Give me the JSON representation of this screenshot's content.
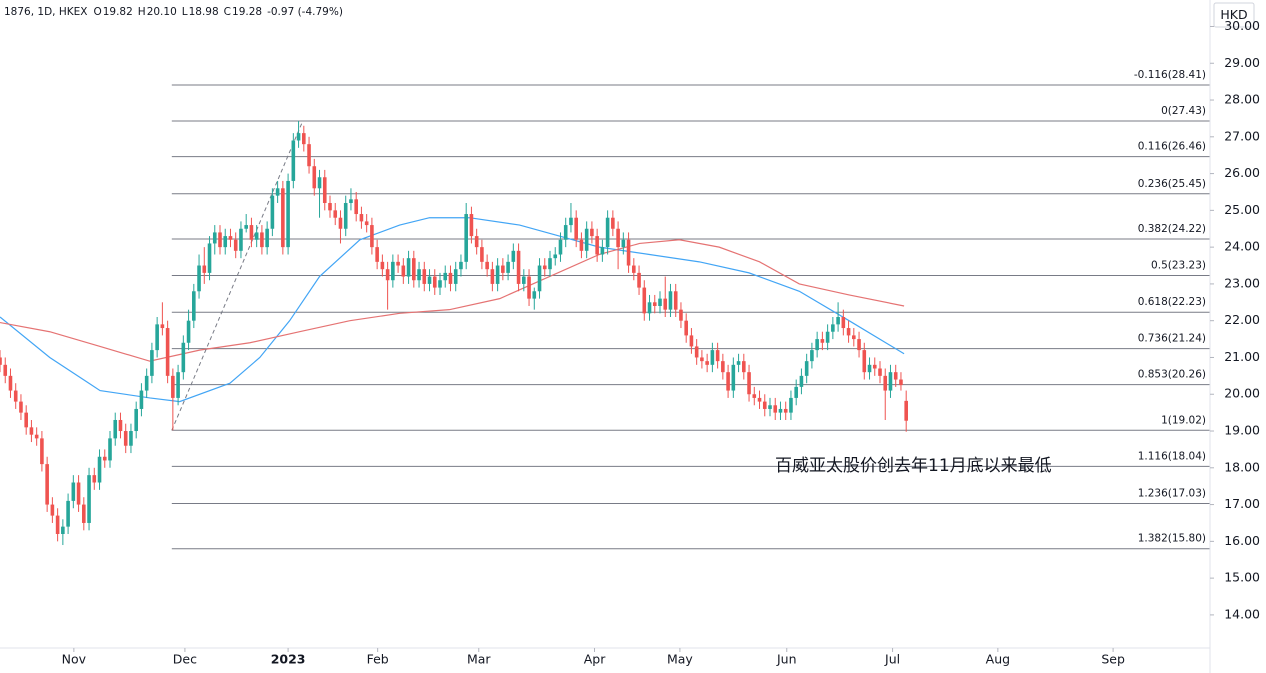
{
  "chart_data": {
    "type": "candlestick",
    "header": {
      "symbol": "1876, 1D, HKEX",
      "fields": [
        {
          "label": "O",
          "value": "19.82"
        },
        {
          "label": "H",
          "value": "20.10"
        },
        {
          "label": "L",
          "value": "18.98"
        },
        {
          "label": "C",
          "value": "19.28"
        }
      ],
      "change": "-0.97 (-4.79%)"
    },
    "currency": "HKD",
    "annotation": "百威亚太股价创去年11月底以来最低",
    "up_color": "#26a69a",
    "down_color": "#ef5350",
    "xlim": [
      0,
      231
    ],
    "xticks": [
      {
        "value": 14.1,
        "label": "Nov"
      },
      {
        "value": 35.3,
        "label": "Dec"
      },
      {
        "value": 55,
        "label": "2023"
      },
      {
        "value": 72.1,
        "label": "Feb"
      },
      {
        "value": 91.4,
        "label": "Mar"
      },
      {
        "value": 113.5,
        "label": "Apr"
      },
      {
        "value": 129.8,
        "label": "May"
      },
      {
        "value": 150.2,
        "label": "Jun"
      },
      {
        "value": 170.4,
        "label": "Jul"
      },
      {
        "value": 190.5,
        "label": "Aug"
      },
      {
        "value": 212.5,
        "label": "Sep"
      }
    ],
    "ylim": [
      13.1,
      30.72
    ],
    "yticks": [
      {
        "value": 14,
        "label": "14.00"
      },
      {
        "value": 15,
        "label": "15.00"
      },
      {
        "value": 16,
        "label": "16.00"
      },
      {
        "value": 17,
        "label": "17.00"
      },
      {
        "value": 18,
        "label": "18.00"
      },
      {
        "value": 19,
        "label": "19.00"
      },
      {
        "value": 20,
        "label": "20.00"
      },
      {
        "value": 21,
        "label": "21.00"
      },
      {
        "value": 22,
        "label": "22.00"
      },
      {
        "value": 23,
        "label": "23.00"
      },
      {
        "value": 24,
        "label": "24.00"
      },
      {
        "value": 25,
        "label": "25.00"
      },
      {
        "value": 26,
        "label": "26.00"
      },
      {
        "value": 27,
        "label": "27.00"
      },
      {
        "value": 28,
        "label": "28.00"
      },
      {
        "value": 29,
        "label": "29.00"
      },
      {
        "value": 30,
        "label": "30.00"
      }
    ],
    "ohlc": [
      [
        21.0,
        21.2,
        20.6,
        20.8
      ],
      [
        20.8,
        21.0,
        20.3,
        20.5
      ],
      [
        20.5,
        20.7,
        19.9,
        20.1
      ],
      [
        20.1,
        20.3,
        19.6,
        19.8
      ],
      [
        19.8,
        20.0,
        19.3,
        19.5
      ],
      [
        19.5,
        19.7,
        18.9,
        19.1
      ],
      [
        19.1,
        19.3,
        18.7,
        18.9
      ],
      [
        18.9,
        19.1,
        18.6,
        18.8
      ],
      [
        18.8,
        19.0,
        17.9,
        18.1
      ],
      [
        18.1,
        18.3,
        16.8,
        17.0
      ],
      [
        17.0,
        17.2,
        16.5,
        16.7
      ],
      [
        16.7,
        16.9,
        16.0,
        16.2
      ],
      [
        16.2,
        16.6,
        15.9,
        16.4
      ],
      [
        16.4,
        17.3,
        16.2,
        17.1
      ],
      [
        17.1,
        17.8,
        16.9,
        17.6
      ],
      [
        17.6,
        17.8,
        16.8,
        17.0
      ],
      [
        17.0,
        17.2,
        16.3,
        16.5
      ],
      [
        16.5,
        18.0,
        16.3,
        17.8
      ],
      [
        17.8,
        18.0,
        17.4,
        17.6
      ],
      [
        17.6,
        18.5,
        17.4,
        18.3
      ],
      [
        18.3,
        18.5,
        18.0,
        18.2
      ],
      [
        18.2,
        19.0,
        18.0,
        18.8
      ],
      [
        18.8,
        19.5,
        18.6,
        19.3
      ],
      [
        19.3,
        19.5,
        18.8,
        19.0
      ],
      [
        19.0,
        19.2,
        18.4,
        18.6
      ],
      [
        18.6,
        19.2,
        18.4,
        19.0
      ],
      [
        19.0,
        19.8,
        18.8,
        19.6
      ],
      [
        19.6,
        20.3,
        19.4,
        20.1
      ],
      [
        20.1,
        20.7,
        19.9,
        20.5
      ],
      [
        20.5,
        21.4,
        20.3,
        21.2
      ],
      [
        21.2,
        22.1,
        21.0,
        21.9
      ],
      [
        21.9,
        22.5,
        21.6,
        21.8
      ],
      [
        21.8,
        22.0,
        20.3,
        20.5
      ],
      [
        20.5,
        20.7,
        19.02,
        19.9
      ],
      [
        19.9,
        20.8,
        19.7,
        20.6
      ],
      [
        20.6,
        21.6,
        20.4,
        21.4
      ],
      [
        21.4,
        22.3,
        21.2,
        22.0
      ],
      [
        22.0,
        23.0,
        21.8,
        22.8
      ],
      [
        22.8,
        23.8,
        22.6,
        23.5
      ],
      [
        23.5,
        24.0,
        23.0,
        23.3
      ],
      [
        23.3,
        24.3,
        23.1,
        24.1
      ],
      [
        24.1,
        24.6,
        23.8,
        24.4
      ],
      [
        24.4,
        24.6,
        23.8,
        24.0
      ],
      [
        24.0,
        24.5,
        23.8,
        24.3
      ],
      [
        24.3,
        24.5,
        24.0,
        24.2
      ],
      [
        24.2,
        24.4,
        23.7,
        23.9
      ],
      [
        23.9,
        24.7,
        23.7,
        24.5
      ],
      [
        24.5,
        24.9,
        24.4,
        24.6
      ],
      [
        24.6,
        24.8,
        24.0,
        24.2
      ],
      [
        24.2,
        24.6,
        24.0,
        24.4
      ],
      [
        24.4,
        24.6,
        23.8,
        24.0
      ],
      [
        24.0,
        24.7,
        23.8,
        24.5
      ],
      [
        24.5,
        25.6,
        24.3,
        25.4
      ],
      [
        25.4,
        25.8,
        25.2,
        25.6
      ],
      [
        25.6,
        25.8,
        23.8,
        24.0
      ],
      [
        24.0,
        26.0,
        23.8,
        25.8
      ],
      [
        25.8,
        27.1,
        25.6,
        26.9
      ],
      [
        26.9,
        27.43,
        26.7,
        27.1
      ],
      [
        27.1,
        27.3,
        26.6,
        26.8
      ],
      [
        26.8,
        27.0,
        26.0,
        26.2
      ],
      [
        26.2,
        26.4,
        25.4,
        25.6
      ],
      [
        25.6,
        26.1,
        24.8,
        25.9
      ],
      [
        25.9,
        26.1,
        25.0,
        25.2
      ],
      [
        25.2,
        25.4,
        24.8,
        25.0
      ],
      [
        25.0,
        25.2,
        24.6,
        24.8
      ],
      [
        24.8,
        25.0,
        24.1,
        24.5
      ],
      [
        24.5,
        25.4,
        24.3,
        25.2
      ],
      [
        25.2,
        25.6,
        25.0,
        25.3
      ],
      [
        25.3,
        25.5,
        24.7,
        24.9
      ],
      [
        24.9,
        25.1,
        24.5,
        24.7
      ],
      [
        24.7,
        24.9,
        24.4,
        24.6
      ],
      [
        24.6,
        24.8,
        23.8,
        24.0
      ],
      [
        24.0,
        24.2,
        23.4,
        23.6
      ],
      [
        23.6,
        23.8,
        23.2,
        23.4
      ],
      [
        23.4,
        23.6,
        22.3,
        23.1
      ],
      [
        23.1,
        23.8,
        22.9,
        23.6
      ],
      [
        23.6,
        23.8,
        23.3,
        23.5
      ],
      [
        23.5,
        23.7,
        23.0,
        23.2
      ],
      [
        23.2,
        23.9,
        23.0,
        23.7
      ],
      [
        23.7,
        23.9,
        22.9,
        23.1
      ],
      [
        23.1,
        23.6,
        22.9,
        23.4
      ],
      [
        23.4,
        23.6,
        22.8,
        23.0
      ],
      [
        23.0,
        23.4,
        22.8,
        23.2
      ],
      [
        23.2,
        23.4,
        22.7,
        22.9
      ],
      [
        22.9,
        23.3,
        22.7,
        23.1
      ],
      [
        23.1,
        23.5,
        22.9,
        23.3
      ],
      [
        23.3,
        23.5,
        22.8,
        23.0
      ],
      [
        23.0,
        23.6,
        22.8,
        23.4
      ],
      [
        23.4,
        23.8,
        23.2,
        23.6
      ],
      [
        23.6,
        25.2,
        23.4,
        24.9
      ],
      [
        24.9,
        25.1,
        24.1,
        24.3
      ],
      [
        24.3,
        24.5,
        23.8,
        24.0
      ],
      [
        24.0,
        24.2,
        23.4,
        23.6
      ],
      [
        23.6,
        23.8,
        23.2,
        23.4
      ],
      [
        23.4,
        23.6,
        22.8,
        23.0
      ],
      [
        23.0,
        23.7,
        22.8,
        23.5
      ],
      [
        23.5,
        23.7,
        23.1,
        23.3
      ],
      [
        23.3,
        23.8,
        23.1,
        23.6
      ],
      [
        23.6,
        24.1,
        23.4,
        23.9
      ],
      [
        23.9,
        24.1,
        22.8,
        23.0
      ],
      [
        23.0,
        23.4,
        22.8,
        23.2
      ],
      [
        23.2,
        23.4,
        22.4,
        22.6
      ],
      [
        22.6,
        22.9,
        22.3,
        22.8
      ],
      [
        22.8,
        23.7,
        22.6,
        23.5
      ],
      [
        23.5,
        23.7,
        23.2,
        23.4
      ],
      [
        23.4,
        23.9,
        23.2,
        23.7
      ],
      [
        23.7,
        24.0,
        23.5,
        23.8
      ],
      [
        23.8,
        24.4,
        23.6,
        24.2
      ],
      [
        24.2,
        24.8,
        24.0,
        24.6
      ],
      [
        24.6,
        25.2,
        24.4,
        24.8
      ],
      [
        24.8,
        25.0,
        24.0,
        24.2
      ],
      [
        24.2,
        24.4,
        23.7,
        23.9
      ],
      [
        23.9,
        24.7,
        23.7,
        24.5
      ],
      [
        24.5,
        24.7,
        24.1,
        24.3
      ],
      [
        24.3,
        24.5,
        23.6,
        23.8
      ],
      [
        23.8,
        24.2,
        23.6,
        24.0
      ],
      [
        24.0,
        25.0,
        23.8,
        24.8
      ],
      [
        24.8,
        25.0,
        24.3,
        24.5
      ],
      [
        24.5,
        24.7,
        23.4,
        24.0
      ],
      [
        24.0,
        24.4,
        23.8,
        24.2
      ],
      [
        24.2,
        24.4,
        23.3,
        23.5
      ],
      [
        23.5,
        23.7,
        23.1,
        23.3
      ],
      [
        23.3,
        23.5,
        22.7,
        22.9
      ],
      [
        22.9,
        23.1,
        22.0,
        22.2
      ],
      [
        22.2,
        22.7,
        22.0,
        22.5
      ],
      [
        22.5,
        22.7,
        22.2,
        22.4
      ],
      [
        22.4,
        22.8,
        22.2,
        22.6
      ],
      [
        22.6,
        23.2,
        22.1,
        22.3
      ],
      [
        22.3,
        23.0,
        22.1,
        22.8
      ],
      [
        22.8,
        23.0,
        22.1,
        22.3
      ],
      [
        22.3,
        22.5,
        21.8,
        22.0
      ],
      [
        22.0,
        22.2,
        21.4,
        21.6
      ],
      [
        21.6,
        21.8,
        21.1,
        21.3
      ],
      [
        21.3,
        21.5,
        20.8,
        21.0
      ],
      [
        21.0,
        21.2,
        20.7,
        20.9
      ],
      [
        20.9,
        21.1,
        20.6,
        20.8
      ],
      [
        20.8,
        21.4,
        20.6,
        21.2
      ],
      [
        21.2,
        21.4,
        20.7,
        20.9
      ],
      [
        20.9,
        21.1,
        20.4,
        20.6
      ],
      [
        20.6,
        20.8,
        19.9,
        20.1
      ],
      [
        20.1,
        21.0,
        19.9,
        20.8
      ],
      [
        20.8,
        21.1,
        20.6,
        20.9
      ],
      [
        20.9,
        21.1,
        20.4,
        20.6
      ],
      [
        20.6,
        20.8,
        19.8,
        20.0
      ],
      [
        20.0,
        20.2,
        19.7,
        19.9
      ],
      [
        19.9,
        20.1,
        19.6,
        19.8
      ],
      [
        19.8,
        20.0,
        19.4,
        19.6
      ],
      [
        19.6,
        19.9,
        19.4,
        19.7
      ],
      [
        19.7,
        19.9,
        19.3,
        19.5
      ],
      [
        19.5,
        19.8,
        19.3,
        19.6
      ],
      [
        19.6,
        19.8,
        19.3,
        19.5
      ],
      [
        19.5,
        20.1,
        19.3,
        19.9
      ],
      [
        19.9,
        20.4,
        19.7,
        20.2
      ],
      [
        20.2,
        20.7,
        20.0,
        20.5
      ],
      [
        20.5,
        21.1,
        20.3,
        20.9
      ],
      [
        20.9,
        21.4,
        20.7,
        21.2
      ],
      [
        21.2,
        21.7,
        21.0,
        21.5
      ],
      [
        21.5,
        21.7,
        21.2,
        21.4
      ],
      [
        21.4,
        21.9,
        21.2,
        21.7
      ],
      [
        21.7,
        22.1,
        21.5,
        21.9
      ],
      [
        21.9,
        22.5,
        21.7,
        22.1
      ],
      [
        22.1,
        22.3,
        21.6,
        21.8
      ],
      [
        21.8,
        22.0,
        21.4,
        21.6
      ],
      [
        21.6,
        21.8,
        21.3,
        21.5
      ],
      [
        21.5,
        21.7,
        21.0,
        21.2
      ],
      [
        21.2,
        21.4,
        20.4,
        20.6
      ],
      [
        20.6,
        21.0,
        20.4,
        20.8
      ],
      [
        20.8,
        21.0,
        20.5,
        20.7
      ],
      [
        20.7,
        20.9,
        20.3,
        20.5
      ],
      [
        20.5,
        20.7,
        19.3,
        20.1
      ],
      [
        20.1,
        20.8,
        19.9,
        20.6
      ],
      [
        20.6,
        20.8,
        20.2,
        20.4
      ],
      [
        20.4,
        20.6,
        20.1,
        20.25
      ],
      [
        19.82,
        20.1,
        18.98,
        19.28
      ]
    ],
    "moving_averages": [
      {
        "color": "#42a5f5",
        "x": [
          0,
          9.5,
          19.1,
          28.6,
          34.3,
          43.9,
          49.6,
          55.3,
          61,
          68.7,
          76.3,
          82,
          89.6,
          99.2,
          106.8,
          114.4,
          124,
          133.5,
          143,
          152.6,
          162.1,
          172.6
        ],
        "values": [
          22.1,
          21.0,
          20.1,
          19.9,
          19.8,
          20.3,
          21.0,
          22.0,
          23.2,
          24.2,
          24.6,
          24.8,
          24.8,
          24.6,
          24.3,
          24.0,
          23.8,
          23.6,
          23.3,
          22.8,
          22.0,
          21.1
        ]
      },
      {
        "color": "#e57373",
        "x": [
          0,
          9.5,
          19.1,
          28.6,
          38.1,
          47.7,
          57.2,
          66.8,
          76.3,
          85.8,
          95.4,
          104.9,
          114.4,
          122.1,
          129.7,
          137.3,
          145,
          152.6,
          162.1,
          172.6
        ],
        "values": [
          21.95,
          21.7,
          21.3,
          20.9,
          21.2,
          21.4,
          21.7,
          22.0,
          22.2,
          22.3,
          22.6,
          23.2,
          23.8,
          24.1,
          24.2,
          24.0,
          23.6,
          23.0,
          22.7,
          22.4
        ]
      }
    ],
    "trendline": {
      "x": [
        32.8,
        57.8
      ],
      "values": [
        19.02,
        27.43
      ]
    },
    "fib_levels": [
      {
        "value": 28.41,
        "label": "-0.116(28.41)"
      },
      {
        "value": 27.43,
        "label": "0(27.43)"
      },
      {
        "value": 26.46,
        "label": "0.116(26.46)"
      },
      {
        "value": 25.45,
        "label": "0.236(25.45)"
      },
      {
        "value": 24.22,
        "label": "0.382(24.22)"
      },
      {
        "value": 23.23,
        "label": "0.5(23.23)"
      },
      {
        "value": 22.23,
        "label": "0.618(22.23)"
      },
      {
        "value": 21.24,
        "label": "0.736(21.24)"
      },
      {
        "value": 20.26,
        "label": "0.853(20.26)"
      },
      {
        "value": 19.02,
        "label": "1(19.02)"
      },
      {
        "value": 18.04,
        "label": "1.116(18.04)"
      },
      {
        "value": 17.03,
        "label": "1.236(17.03)"
      },
      {
        "value": 15.8,
        "label": "1.382(15.80)"
      }
    ]
  }
}
